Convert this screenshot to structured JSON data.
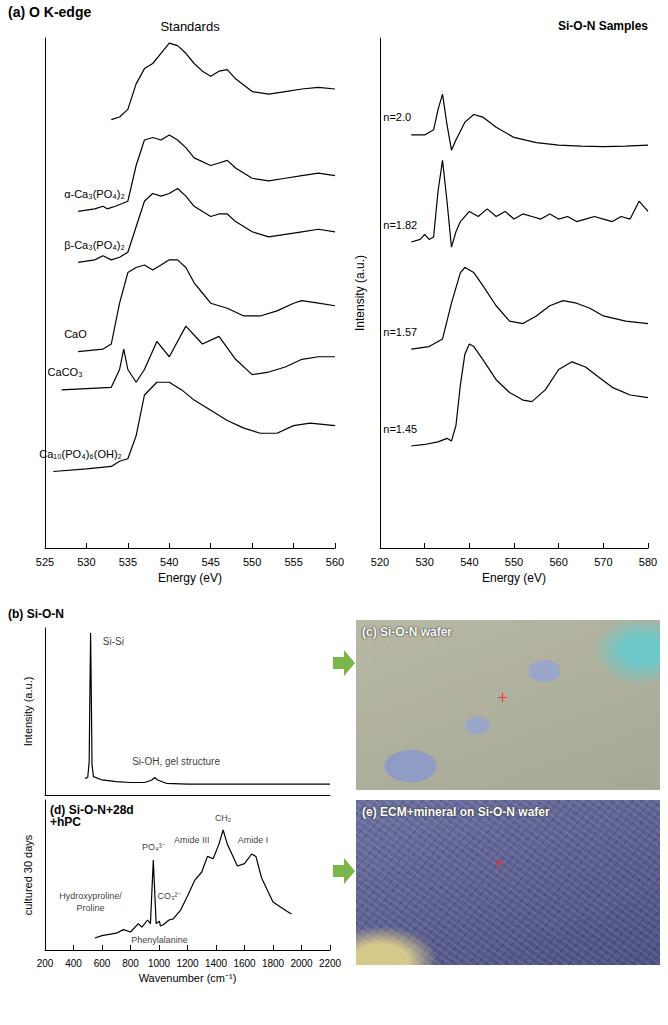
{
  "title": "(a) O K-edge",
  "chart_data": [
    {
      "type": "line",
      "title": "Standards",
      "x_label": "Energy (eV)",
      "color": "#000000",
      "xlim": [
        525,
        560
      ],
      "xticks": [
        525,
        530,
        535,
        540,
        545,
        550,
        555,
        560
      ],
      "ylim": [
        0,
        100
      ],
      "tick_labels": "x",
      "grid": false,
      "series": [
        {
          "x": [
            533,
            534,
            535,
            536,
            537,
            538,
            539,
            540,
            541,
            542,
            543,
            544,
            545,
            546,
            547,
            548,
            550,
            552,
            554,
            556,
            558,
            560
          ],
          "values": [
            84,
            84.5,
            86,
            91,
            94,
            95,
            97,
            99,
            98.5,
            97,
            95,
            93.5,
            92.5,
            93.5,
            93.8,
            92,
            89.5,
            89,
            89.5,
            90,
            90.3,
            90
          ]
        },
        {
          "name": "α-Ca₃(PO₄)₂",
          "x": [
            529,
            531,
            532,
            532.5,
            533.5,
            535,
            536,
            537,
            538,
            539,
            540,
            541,
            542,
            543,
            545,
            546,
            547,
            548,
            550,
            552,
            554,
            556,
            558,
            560
          ],
          "values": [
            66,
            66.5,
            67,
            66.5,
            67,
            68,
            75,
            80,
            80.5,
            80,
            81,
            80,
            78.5,
            76.5,
            75,
            75.5,
            76,
            74.5,
            72.5,
            72,
            72.5,
            73,
            73.5,
            73
          ]
        },
        {
          "name": "β-Ca₃(PO₄)₂",
          "x": [
            529,
            531,
            532,
            533,
            534,
            535,
            536,
            537,
            538,
            539,
            540,
            541,
            542,
            543,
            545,
            546,
            547,
            548,
            550,
            552,
            554,
            556,
            558,
            560
          ],
          "values": [
            56,
            56.5,
            57.3,
            56.5,
            57,
            58,
            63,
            68,
            69.5,
            69,
            69.5,
            70.5,
            69,
            67,
            65,
            65.5,
            65.5,
            64,
            62,
            61,
            61.5,
            62,
            62.5,
            62
          ]
        },
        {
          "name": "CaO",
          "x": [
            529,
            532,
            533,
            534,
            535,
            536,
            537,
            538,
            539,
            540,
            541,
            542,
            543,
            544,
            545,
            547,
            549,
            551,
            553,
            555,
            556,
            558,
            560
          ],
          "values": [
            38.5,
            39,
            40,
            48,
            54,
            55,
            55.5,
            54.5,
            55.5,
            56.5,
            56.5,
            55,
            52,
            50,
            48,
            47,
            45.5,
            45.5,
            46.5,
            48,
            48.5,
            48,
            47.5
          ]
        },
        {
          "name": "CaCO₃",
          "x": [
            527,
            533,
            534,
            534.5,
            535,
            536,
            537,
            538.5,
            540,
            542,
            544,
            546,
            548,
            550,
            552,
            554,
            556,
            558,
            560
          ],
          "values": [
            31,
            31.5,
            35,
            39,
            35,
            32.5,
            35,
            40.5,
            37.5,
            43.5,
            40,
            41.5,
            37,
            34,
            34.5,
            35.5,
            37,
            37.5,
            37.5
          ]
        },
        {
          "name": "Ca₁₀(PO₄)₆(OH)₂",
          "x": [
            526,
            530,
            533,
            534,
            535,
            536,
            537,
            538.5,
            540,
            541.5,
            543,
            545,
            547,
            549,
            551,
            553,
            555,
            557,
            560
          ],
          "values": [
            15,
            15.5,
            16,
            17,
            17.5,
            22,
            30,
            32.5,
            32.5,
            31,
            29,
            27,
            25,
            23.5,
            22.5,
            22.5,
            24,
            24.5,
            24
          ]
        }
      ]
    },
    {
      "type": "line",
      "title": "Si-O-N Samples",
      "x_label": "Energy (eV)",
      "y_label": "Intensity (a.u.)",
      "color": "#000000",
      "xlim": [
        520,
        580
      ],
      "xticks": [
        520,
        530,
        540,
        550,
        560,
        570,
        580
      ],
      "ylim": [
        0,
        100
      ],
      "tick_labels": "x",
      "grid": false,
      "series": [
        {
          "name": "n=2.0",
          "x": [
            527,
            530,
            532,
            533,
            534,
            535,
            536,
            537,
            539,
            541,
            543,
            546,
            550,
            555,
            560,
            565,
            570,
            575,
            580
          ],
          "values": [
            81,
            81,
            82,
            86,
            89,
            83,
            78,
            80,
            83.5,
            85,
            84.5,
            82.5,
            80.5,
            79.5,
            79,
            78.8,
            78.7,
            78.8,
            79
          ]
        },
        {
          "name": "n=1.82",
          "x": [
            527,
            529,
            530,
            531,
            532,
            533,
            534,
            535,
            536,
            537,
            538,
            540,
            542,
            544,
            546,
            548,
            550,
            552,
            554,
            556,
            558,
            560,
            562,
            564,
            566,
            568,
            570,
            572,
            574,
            576,
            578,
            580
          ],
          "values": [
            60,
            60.5,
            61.5,
            60.5,
            61,
            70,
            76,
            68,
            59,
            62,
            64,
            66,
            65,
            66.5,
            65,
            66,
            64.5,
            65.5,
            65,
            64.5,
            65.5,
            64.5,
            65,
            64,
            64.5,
            65,
            64.5,
            64,
            65,
            64.5,
            68,
            66
          ]
        },
        {
          "name": "n=1.57",
          "x": [
            527,
            531,
            534,
            536,
            538,
            539,
            541,
            543,
            546,
            549,
            552,
            555,
            558,
            561,
            564,
            567,
            570,
            575,
            580
          ],
          "values": [
            39,
            39.5,
            41,
            48,
            54,
            55,
            54,
            51.5,
            47.5,
            44.5,
            44,
            45.5,
            47.5,
            48.5,
            48,
            47,
            45.5,
            44.5,
            44
          ]
        },
        {
          "name": "n=1.45",
          "x": [
            527,
            530,
            533,
            535,
            536,
            537,
            538,
            539,
            540,
            541,
            543,
            546,
            549,
            552,
            554,
            557,
            560,
            563,
            566,
            569,
            572,
            576,
            580
          ],
          "values": [
            20,
            20.3,
            20.8,
            21.5,
            21,
            24,
            32,
            38,
            40,
            39.5,
            37,
            33,
            30.5,
            29,
            28.7,
            31,
            35,
            36.5,
            35.5,
            33.5,
            31.5,
            30,
            29.5
          ]
        }
      ]
    },
    {
      "type": "line",
      "title": "(b) Si-O-N",
      "y_label": "Intensity (a.u.)",
      "color": "#000000",
      "xlim": [
        200,
        2200
      ],
      "ylim": [
        0,
        100
      ],
      "tick_labels": false,
      "grid": false,
      "series": [
        {
          "x": [
            480,
            500,
            510,
            515,
            520,
            525,
            530,
            540,
            600,
            700,
            800,
            900,
            950,
            970,
            990,
            1050,
            1200,
            1400,
            1600,
            1800,
            2000,
            2200
          ],
          "values": [
            10,
            10.5,
            20,
            60,
            97,
            60,
            18,
            11,
            9,
            8,
            7.5,
            7.5,
            9,
            10.5,
            9,
            7,
            6.5,
            6.5,
            6.5,
            6.5,
            6.5,
            6.5
          ]
        }
      ],
      "annotations": [
        {
          "text": "Si-Si",
          "x": 680,
          "y": 92
        },
        {
          "text": "Si-OH, gel structure",
          "x": 1120,
          "y": 20
        }
      ]
    },
    {
      "type": "line",
      "title": "(d) Si-O-N+28d +hPC",
      "x_label": "Wavenumber (cm⁻¹)",
      "y_label": "cultured 30 days",
      "color": "#000000",
      "xlim": [
        200,
        2200
      ],
      "xticks": [
        200,
        400,
        600,
        800,
        1000,
        1200,
        1400,
        1600,
        1800,
        2000,
        2200
      ],
      "ylim": [
        0,
        125
      ],
      "tick_labels": "x",
      "grid": false,
      "series": [
        {
          "x": [
            550,
            600,
            650,
            700,
            750,
            800,
            855,
            880,
            920,
            940,
            960,
            980,
            1003,
            1010,
            1030,
            1070,
            1100,
            1150,
            1200,
            1250,
            1300,
            1340,
            1380,
            1420,
            1450,
            1480,
            1500,
            1550,
            1600,
            1650,
            1680,
            1720,
            1800,
            1900,
            1930
          ],
          "values": [
            10,
            12,
            13,
            14,
            17,
            15,
            22,
            19,
            25,
            22,
            75,
            22,
            24,
            20,
            21,
            25,
            26,
            33,
            45,
            58,
            65,
            78,
            76,
            88,
            100,
            88,
            83,
            70,
            72,
            80,
            78,
            60,
            40,
            32,
            30
          ]
        }
      ],
      "annotations": [
        {
          "text": "Hydroxyproline/ Proline",
          "x": 520,
          "y": 40
        },
        {
          "text": "PO₄³⁻",
          "x": 960,
          "y": 86
        },
        {
          "text": "CO₃²⁻",
          "x": 1070,
          "y": 45
        },
        {
          "text": "Phenylalanine",
          "x": 1003,
          "y": 8
        },
        {
          "text": "Amide III",
          "x": 1230,
          "y": 92
        },
        {
          "text": "CH₂",
          "x": 1450,
          "y": 110
        },
        {
          "text": "Amide I",
          "x": 1660,
          "y": 92
        }
      ]
    }
  ],
  "images": [
    {
      "label": "(c) Si-O-N wafer"
    },
    {
      "label": "(e) ECM+mineral on Si-O-N wafer"
    }
  ]
}
